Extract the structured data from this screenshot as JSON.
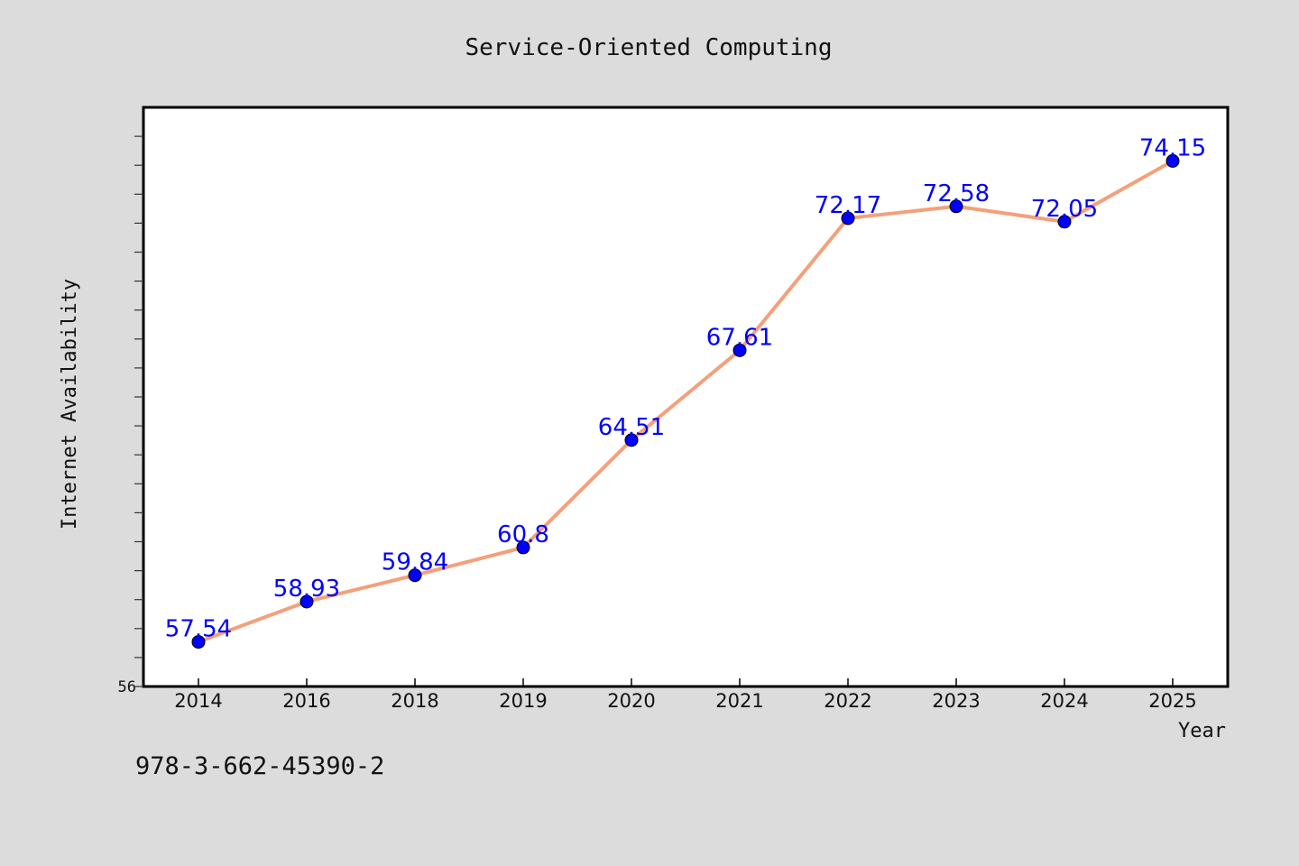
{
  "chart_data": {
    "type": "line",
    "title": "Service-Oriented Computing",
    "xlabel": "Year",
    "ylabel": "Internet Availability",
    "categories": [
      "2014",
      "2016",
      "2018",
      "2019",
      "2020",
      "2021",
      "2022",
      "2023",
      "2024",
      "2025"
    ],
    "values": [
      57.54,
      58.93,
      59.84,
      60.8,
      64.51,
      67.61,
      72.17,
      72.58,
      72.05,
      74.15
    ],
    "data_labels": [
      "57.54",
      "58.93",
      "59.84",
      "60.8",
      "64.51",
      "67.61",
      "72.17",
      "72.58",
      "72.05",
      "74.15"
    ],
    "ylim": [
      56,
      76
    ],
    "y_tick_labels": [
      "56"
    ],
    "grid": false,
    "line_color": "#f4a07a",
    "marker_color": "#0000ff",
    "label_color": "#0000ff"
  },
  "footer": {
    "isbn": "978-3-662-45390-2"
  }
}
